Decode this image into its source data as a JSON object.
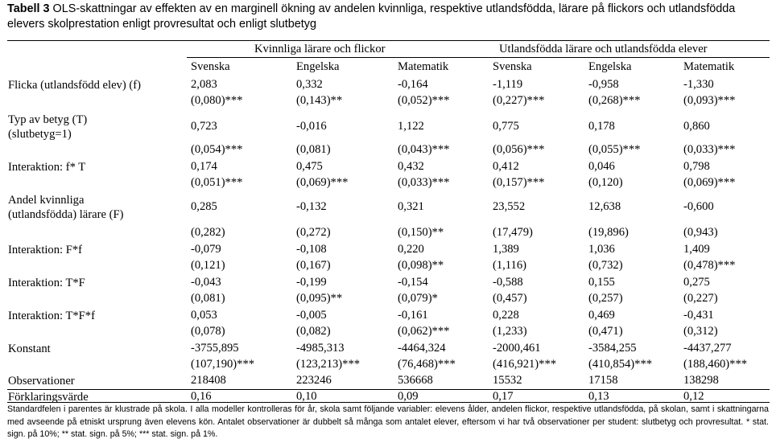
{
  "caption": {
    "label": "Tabell 3",
    "text": "OLS-skattningar av effekten av en marginell ökning av andelen kvinnliga, respektive utlandsfödda, lärare på flickors och utlandsfödda elevers skolprestation enligt provresultat och enligt slutbetyg"
  },
  "header": {
    "group1": "Kvinnliga lärare och flickor",
    "group2": "Utlandsfödda lärare och utlandsfödda elever",
    "columns": [
      "Svenska",
      "Engelska",
      "Matematik",
      "Svenska",
      "Engelska",
      "Matematik"
    ]
  },
  "rows": [
    {
      "label": "Flicka (utlandsfödd elev) (f)",
      "coef": [
        "2,083",
        "0,332",
        "-0,164",
        "-1,119",
        "-0,958",
        "-1,330"
      ],
      "se": [
        "(0,080)***",
        "(0,143)**",
        "(0,052)***",
        "(0,227)***",
        "(0,268)***",
        "(0,093)***"
      ]
    },
    {
      "label": "Typ av betyg (T) (slutbetyg=1)",
      "coef": [
        "0,723",
        "-0,016",
        "1,122",
        "0,775",
        "0,178",
        "0,860"
      ],
      "se": [
        "(0,054)***",
        "(0,081)",
        "(0,043)***",
        "(0,056)***",
        "(0,055)***",
        "(0,033)***"
      ]
    },
    {
      "label": "Interaktion: f* T",
      "coef": [
        "0,174",
        "0,475",
        "0,432",
        "0,412",
        "0,046",
        "0,798"
      ],
      "se": [
        "(0,051)***",
        "(0,069)***",
        "(0,033)***",
        "(0,157)***",
        "(0,120)",
        "(0,069)***"
      ]
    },
    {
      "label": "Andel kvinnliga (utlandsfödda) lärare (F)",
      "coef": [
        "0,285",
        "-0,132",
        "0,321",
        "23,552",
        "12,638",
        "-0,600"
      ],
      "se": [
        "(0,282)",
        "(0,272)",
        "(0,150)**",
        "(17,479)",
        "(19,896)",
        "(0,943)"
      ]
    },
    {
      "label": "Interaktion: F*f",
      "coef": [
        "-0,079",
        "-0,108",
        "0,220",
        "1,389",
        "1,036",
        "1,409"
      ],
      "se": [
        "(0,121)",
        "(0,167)",
        "(0,098)**",
        "(1,116)",
        "(0,732)",
        "(0,478)***"
      ]
    },
    {
      "label": "Interaktion: T*F",
      "coef": [
        "-0,043",
        "-0,199",
        "-0,154",
        "-0,588",
        "0,155",
        "0,275"
      ],
      "se": [
        "(0,081)",
        "(0,095)**",
        "(0,079)*",
        "(0,457)",
        "(0,257)",
        "(0,227)"
      ]
    },
    {
      "label": "Interaktion: T*F*f",
      "coef": [
        "0,053",
        "-0,005",
        "-0,161",
        "0,228",
        "0,469",
        "-0,431"
      ],
      "se": [
        "(0,078)",
        "(0,082)",
        "(0,062)***",
        "(1,233)",
        "(0,471)",
        "(0,312)"
      ]
    },
    {
      "label": "Konstant",
      "coef": [
        "-3755,895",
        "-4985,313",
        "-4464,324",
        "-2000,461",
        "-3584,255",
        "-4437,277"
      ],
      "se": [
        "(107,190)***",
        "(123,213)***",
        "(76,468)***",
        "(416,921)***",
        "(410,854)***",
        "(188,460)***"
      ]
    }
  ],
  "observations": {
    "label": "Observationer",
    "values": [
      "218408",
      "223246",
      "536668",
      "15532",
      "17158",
      "138298"
    ]
  },
  "r2": {
    "label": "Förklaringsvärde",
    "values": [
      "0,16",
      "0,10",
      "0,09",
      "0,17",
      "0,13",
      "0,12"
    ]
  },
  "footnote": "Standardfelen i parentes är klustrade på skola. I alla modeller kontrolleras för år, skola samt följande variabler: elevens ålder, andelen flickor, respektive utlandsfödda, på skolan, samt i skattningarna med avseende på etniskt ursprung även elevens kön. Antalet observationer är dubbelt så många som antalet elever, eftersom vi har två observationer per student: slutbetyg och provresultat. * stat. sign. på 10%; ** stat. sign. på 5%; *** stat. sign. på 1%."
}
